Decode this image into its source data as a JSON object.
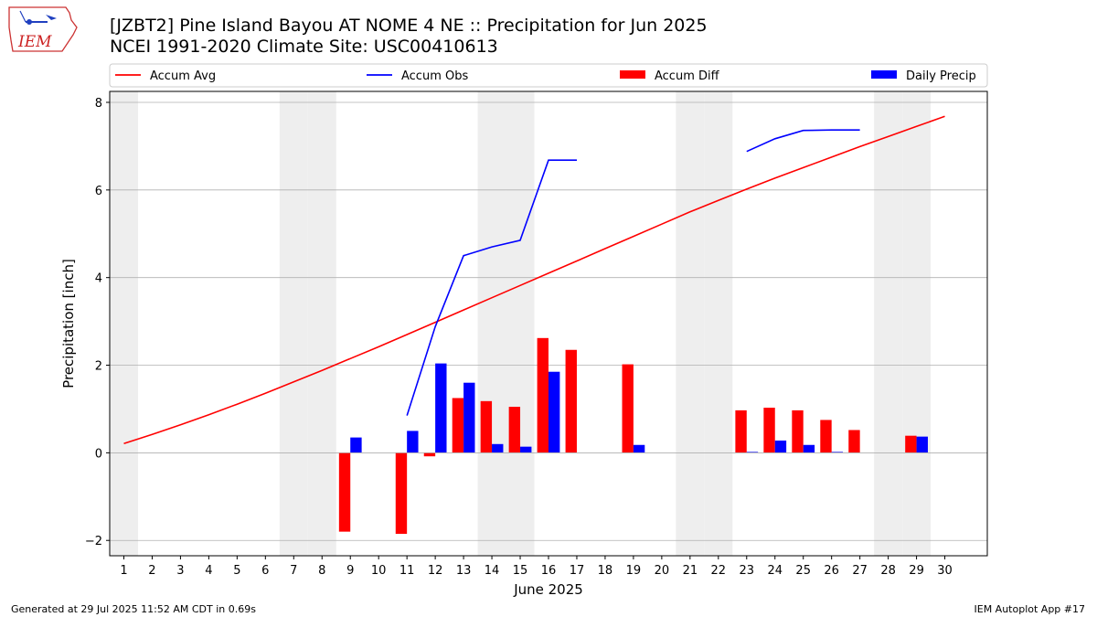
{
  "header": {
    "title_line1": "[JZBT2] Pine Island Bayou  AT NOME 4 NE :: Precipitation for Jun 2025",
    "title_line2": "NCEI 1991-2020 Climate Site: USC00410613",
    "logo_text": "IEM"
  },
  "footer": {
    "generated": "Generated at 29 Jul 2025 11:52 AM CDT in 0.69s",
    "app": "IEM Autoplot App #17"
  },
  "colors": {
    "accum_avg": "#ff0000",
    "accum_obs": "#0000ff",
    "accum_diff": "#ff0000",
    "daily_precip": "#0000ff",
    "weekend_shade": "#eeeeee",
    "grid": "#b0b0b0"
  },
  "chart_data": {
    "type": "bar",
    "xlabel": "June 2025",
    "ylabel": "Precipitation [inch]",
    "xlim": [
      0.5,
      31.5
    ],
    "ylim": [
      -2.35,
      8.25
    ],
    "yticks": [
      -2,
      0,
      2,
      4,
      6,
      8
    ],
    "grid": true,
    "legend_placement": "top",
    "legend": [
      "Accum Avg",
      "Accum Obs",
      "Accum Diff",
      "Daily Precip"
    ],
    "days": [
      1,
      2,
      3,
      4,
      5,
      6,
      7,
      8,
      9,
      10,
      11,
      12,
      13,
      14,
      15,
      16,
      17,
      18,
      19,
      20,
      21,
      22,
      23,
      24,
      25,
      26,
      27,
      28,
      29,
      30
    ],
    "weekend_days": [
      1,
      7,
      8,
      14,
      15,
      21,
      22,
      28,
      29
    ],
    "series": [
      {
        "name": "Accum Avg",
        "kind": "line",
        "values": [
          0.21,
          0.42,
          0.64,
          0.87,
          1.11,
          1.36,
          1.62,
          1.88,
          2.15,
          2.42,
          2.7,
          2.98,
          3.26,
          3.54,
          3.82,
          4.1,
          4.38,
          4.66,
          4.94,
          5.22,
          5.5,
          5.76,
          6.02,
          6.27,
          6.51,
          6.75,
          6.99,
          7.22,
          7.45,
          7.68
        ]
      },
      {
        "name": "Accum Obs",
        "kind": "line",
        "values": [
          null,
          null,
          null,
          null,
          null,
          null,
          null,
          null,
          null,
          null,
          0.85,
          2.88,
          4.5,
          4.7,
          4.85,
          6.68,
          6.68,
          null,
          null,
          null,
          null,
          null,
          6.88,
          7.17,
          7.36,
          7.37,
          7.37,
          null,
          null,
          null
        ]
      },
      {
        "name": "Accum Diff",
        "kind": "bar",
        "values": [
          null,
          null,
          null,
          null,
          null,
          null,
          null,
          null,
          -1.8,
          null,
          -1.85,
          -0.08,
          1.25,
          1.18,
          1.05,
          2.62,
          2.35,
          null,
          2.02,
          null,
          null,
          null,
          0.97,
          1.03,
          0.97,
          0.75,
          0.52,
          null,
          0.39,
          null
        ]
      },
      {
        "name": "Daily Precip",
        "kind": "bar",
        "values": [
          null,
          null,
          null,
          null,
          null,
          null,
          null,
          null,
          0.35,
          null,
          0.5,
          2.04,
          1.6,
          0.2,
          0.14,
          1.85,
          null,
          null,
          0.18,
          null,
          null,
          null,
          0.02,
          0.28,
          0.18,
          0.02,
          null,
          null,
          0.37,
          null
        ]
      }
    ]
  }
}
